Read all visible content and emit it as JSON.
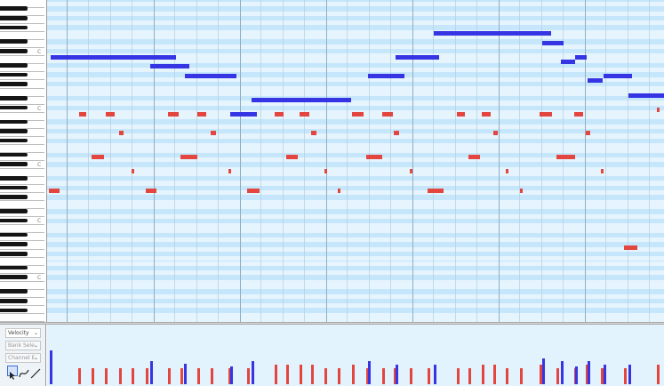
{
  "editor": {
    "octave_labels": [
      "C",
      "C",
      "C",
      "C",
      "C",
      "C"
    ],
    "note_colors": {
      "melody": "#3535e4",
      "accompaniment": "#e2463f"
    },
    "grid_colors": {
      "row_light": "#e6f4fe",
      "row_dark": "#c6e6fb",
      "bar_line": "#8eafc2",
      "beat_line": "#b0cede"
    }
  },
  "control_panel": {
    "controller_select": "Velocity",
    "bank_select": "Bank Sele",
    "channel_select": "Channel E",
    "tools": [
      "pointer-tool",
      "curve-tool",
      "line-tool"
    ]
  },
  "velocity_lane": {
    "bar_colors": {
      "melody": "#3535e4",
      "accompaniment": "#e2463f"
    }
  }
}
